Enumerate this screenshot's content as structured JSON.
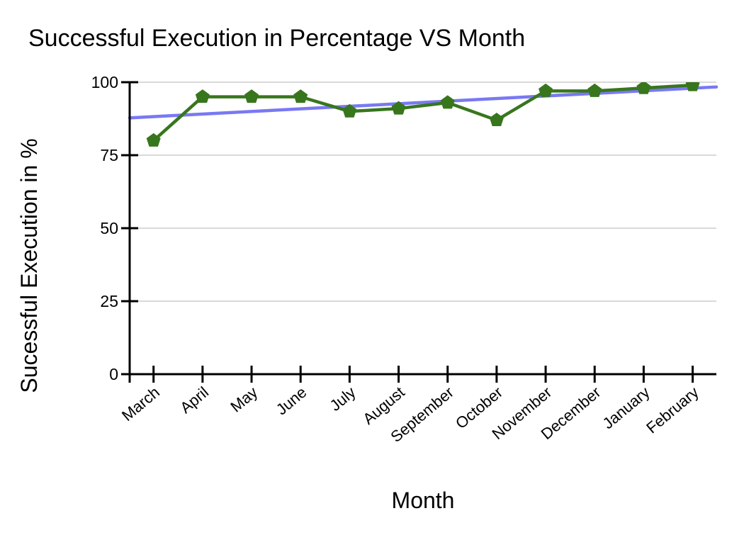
{
  "page": {
    "background": "#ffffff"
  },
  "chart_data": {
    "type": "line",
    "title": "Successful Execution in Percentage VS Month",
    "xlabel": "Month",
    "ylabel": "Sucessful Execution in %",
    "categories": [
      "March",
      "April",
      "May",
      "June",
      "July",
      "August",
      "September",
      "October",
      "November",
      "December",
      "January",
      "February"
    ],
    "series": [
      {
        "values": [
          80,
          95,
          95,
          95,
          90,
          91,
          93,
          87,
          97,
          97,
          98,
          99
        ],
        "color": "#38761d",
        "marker": "pentagon"
      }
    ],
    "trendline": {
      "type": "linear",
      "series_index": 0,
      "color": "#6b6bf2",
      "opacity": 0.9
    },
    "ylim": [
      0,
      100
    ],
    "yticks": [
      0,
      25,
      50,
      75,
      100
    ],
    "grid": true,
    "gridline_color": "#d9d9d9",
    "axis_color": "#000000",
    "text_color": "#000000",
    "legend_position": "none"
  }
}
